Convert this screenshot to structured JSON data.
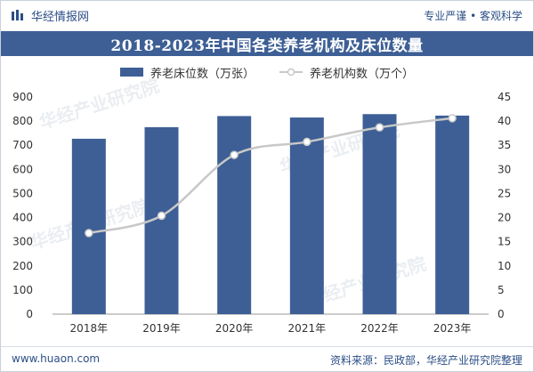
{
  "header": {
    "brand_name": "华经情报网",
    "slogan": "专业严谨 • 客观科学"
  },
  "watermark_text": "华经产业研究院",
  "chart_data": {
    "type": "bar+line",
    "title": "2018-2023年中国各类养老机构及床位数量",
    "categories": [
      "2018年",
      "2019年",
      "2020年",
      "2021年",
      "2022年",
      "2023年"
    ],
    "series": [
      {
        "name": "养老床位数（万张）",
        "type": "bar",
        "axis": "left",
        "color": "#3d5f95",
        "values": [
          727,
          775,
          821,
          815,
          829,
          823
        ]
      },
      {
        "name": "养老机构数（万个）",
        "type": "line",
        "axis": "right",
        "color": "#c8c8c8",
        "values": [
          16.8,
          20.4,
          33.0,
          35.7,
          38.7,
          40.6
        ]
      }
    ],
    "y_left": {
      "min": 0,
      "max": 900,
      "step": 100,
      "ticks": [
        "0",
        "100",
        "200",
        "300",
        "400",
        "500",
        "600",
        "700",
        "800",
        "900"
      ]
    },
    "y_right": {
      "min": 0,
      "max": 45,
      "step": 5,
      "ticks": [
        "0",
        "5",
        "10",
        "15",
        "20",
        "25",
        "30",
        "35",
        "40",
        "45"
      ]
    },
    "legend_position": "top-center",
    "grid": false
  },
  "footer": {
    "url": "www.huaon.com",
    "source": "资料来源：民政部，华经产业研究院整理"
  }
}
